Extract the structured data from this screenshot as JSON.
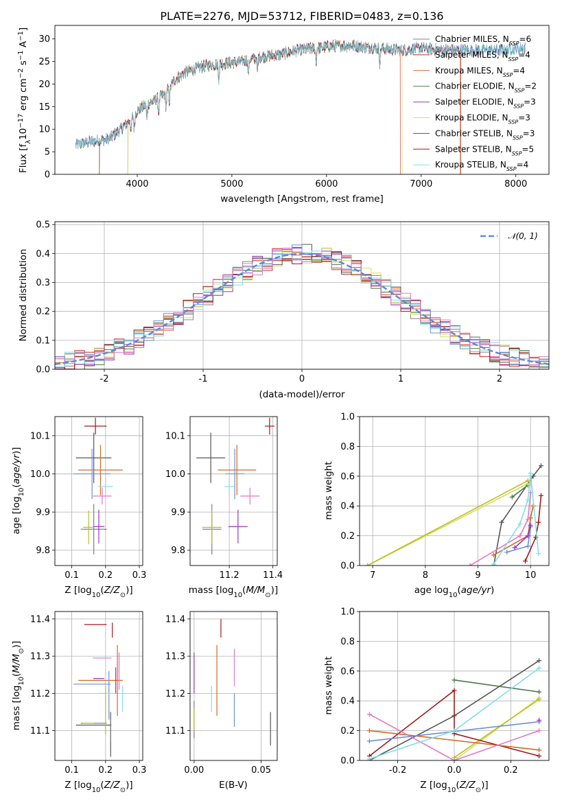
{
  "title": "PLATE=2276, MJD=53712, FIBERID=0483, z=0.136",
  "colors": [
    "#7f7f7f",
    "#d62728",
    "#d2691e",
    "#4a7a4a",
    "#9932cc",
    "#d4e157",
    "#555555",
    "#a01818",
    "#80deea",
    "#6a8fd8",
    "#e377c2",
    "#bcbd22"
  ],
  "chart_data": [
    {
      "id": "spectrum",
      "type": "line",
      "xlabel": "wavelength [Angstrom, rest frame]",
      "ylabel": "Flux [f_λ10^-17 erg cm^-2 s^-1 A^-1]",
      "xlim": [
        3130,
        8350
      ],
      "ylim": [
        0,
        33
      ],
      "grid": false,
      "xticks": [
        4000,
        5000,
        6000,
        7000,
        8000
      ],
      "yticks": [
        0,
        5,
        10,
        15,
        20,
        25,
        30
      ],
      "legend_position": "top-right",
      "series": [
        {
          "name": "Chabrier MILES, N_SSP=6",
          "color": "#7f7f7f"
        },
        {
          "name": "Salpeter MILES, N_SSP=4",
          "color": "#d62728"
        },
        {
          "name": "Kroupa MILES, N_SSP=4",
          "color": "#d2691e"
        },
        {
          "name": "Chabrier ELODIE, N_SSP=2",
          "color": "#4a7a4a"
        },
        {
          "name": "Salpeter ELODIE, N_SSP=3",
          "color": "#9932cc"
        },
        {
          "name": "Kroupa ELODIE, N_SSP=3",
          "color": "#d4e157"
        },
        {
          "name": "Chabrier STELIB, N_SSP=3",
          "color": "#555555"
        },
        {
          "name": "Salpeter STELIB, N_SSP=5",
          "color": "#a01818"
        },
        {
          "name": "Kroupa STELIB, N_SSP=4",
          "color": "#80deea"
        }
      ],
      "continuum": {
        "x": [
          3350,
          3500,
          3700,
          3800,
          3900,
          4000,
          4100,
          4200,
          4300,
          4400,
          4500,
          4700,
          4900,
          5100,
          5300,
          5500,
          5700,
          5900,
          6100,
          6300,
          6500,
          6800,
          7000,
          7200,
          7400,
          7600,
          7800,
          8100
        ],
        "y": [
          6.5,
          7.2,
          7.8,
          9.5,
          11.5,
          14,
          15.5,
          16.5,
          18,
          21,
          22.5,
          24,
          24.5,
          25,
          26,
          26.5,
          27.5,
          28,
          28.5,
          28.5,
          28,
          27.5,
          28,
          27.5,
          27.5,
          27.5,
          27.5,
          28
        ]
      },
      "absorption_lines_x": [
        3934,
        3969,
        4102,
        4227,
        4304,
        4340,
        4861,
        5175,
        5270,
        5890,
        6563
      ]
    },
    {
      "id": "residuals",
      "type": "bar",
      "xlabel": "(data-model)/error",
      "ylabel": "Normed distribution",
      "xlim": [
        -2.5,
        2.5
      ],
      "ylim": [
        0,
        0.51
      ],
      "grid": true,
      "xticks": [
        -2,
        -1,
        0,
        1,
        2
      ],
      "yticks": [
        0.0,
        0.1,
        0.2,
        0.3,
        0.4,
        0.5
      ],
      "legend_position": "top-right",
      "reference_label": "𝒩(0, 1)",
      "reference_color": "#5b8ad8",
      "bin_width": 0.1
    },
    {
      "id": "age-vs-Z",
      "type": "scatter",
      "xlabel": "Z [log10(Z/Z☉)]",
      "ylabel": "age [log10(age/yr)]",
      "xlim": [
        0.05,
        0.31
      ],
      "ylim": [
        9.76,
        10.15
      ],
      "grid": true,
      "xticks": [
        0.1,
        0.2,
        0.3
      ],
      "yticks": [
        9.8,
        9.9,
        10.0,
        10.1
      ]
    },
    {
      "id": "age-vs-mass",
      "type": "scatter",
      "xlabel": "mass [log10(M/M☉)]",
      "ylabel": "",
      "xlim": [
        11.02,
        11.42
      ],
      "ylim": [
        9.76,
        10.15
      ],
      "grid": true,
      "xticks": [
        11.2,
        11.4
      ],
      "yticks": [
        9.8,
        9.9,
        10.0,
        10.1
      ]
    },
    {
      "id": "mass-vs-Z",
      "type": "scatter",
      "xlabel": "Z [log10(Z/Z☉)]",
      "ylabel": "mass [log10(M/M☉)]",
      "xlim": [
        0.05,
        0.31
      ],
      "ylim": [
        11.02,
        11.42
      ],
      "grid": true,
      "xticks": [
        0.1,
        0.2,
        0.3
      ],
      "yticks": [
        11.1,
        11.2,
        11.3,
        11.4
      ]
    },
    {
      "id": "mass-vs-ebv",
      "type": "scatter",
      "xlabel": "E(B-V)",
      "ylabel": "",
      "xlim": [
        -0.003,
        0.062
      ],
      "ylim": [
        11.02,
        11.42
      ],
      "grid": true,
      "xticks": [
        0.0,
        0.05
      ],
      "yticks": [
        11.1,
        11.2,
        11.3,
        11.4
      ]
    },
    {
      "id": "weight-vs-age",
      "type": "line",
      "xlabel": "age log10(age/yr)",
      "ylabel": "mass weight",
      "xlim": [
        6.75,
        10.35
      ],
      "ylim": [
        0,
        1
      ],
      "grid": true,
      "xticks": [
        7,
        8,
        9,
        10
      ],
      "yticks": [
        0.0,
        0.2,
        0.4,
        0.6,
        0.8,
        1.0
      ]
    },
    {
      "id": "weight-vs-Z",
      "type": "line",
      "xlabel": "Z [log10(Z/Z☉)]",
      "ylabel": "mass weight",
      "xlim": [
        -0.335,
        0.335
      ],
      "ylim": [
        0,
        1
      ],
      "grid": true,
      "xticks": [
        -0.2,
        0.0,
        0.2
      ],
      "yticks": [
        0.0,
        0.2,
        0.4,
        0.6,
        0.8,
        1.0
      ]
    }
  ],
  "fits": [
    {
      "color": "#555555",
      "Z": 0.165,
      "Z_err": 0.095,
      "age": 10.042,
      "age_err": 0.03,
      "mass": 11.115,
      "mass_err": 0.03,
      "mass_lo": 11.03,
      "mass_hi": 11.15,
      "ebv": 0.057,
      "ebv_lo": 11.06,
      "ebv_hi": 11.15
    },
    {
      "color": "#7f7f7f",
      "Z": 0.165,
      "Z_err": 0.07,
      "age": 9.855,
      "age_err": 0.03,
      "mass": 11.12,
      "mass_err": 0.02,
      "mass_lo": 11.07,
      "mass_hi": 11.13,
      "ebv": 0.0,
      "ebv_lo": 11.08,
      "ebv_hi": 11.18
    },
    {
      "color": "#a01818",
      "Z": 0.17,
      "Z_err": 0.06,
      "age": 10.125,
      "age_err": 0.01,
      "mass": 11.385,
      "mass_err": 0.01,
      "mass_lo": 11.35,
      "mass_hi": 11.39,
      "ebv": 0.02,
      "ebv_lo": 11.35,
      "ebv_hi": 11.4
    },
    {
      "color": "#d2691e",
      "Z": 0.185,
      "Z_err": 0.12,
      "age": 10.01,
      "age_err": 0.03,
      "mass": 11.235,
      "mass_err": 0.04,
      "mass_lo": 11.14,
      "mass_hi": 11.33,
      "ebv": 0.017,
      "ebv_lo": 11.14,
      "ebv_hi": 11.33
    },
    {
      "color": "#6a8fd8",
      "Z": 0.16,
      "Z_err": 0.1,
      "age": 10.0,
      "age_err": 0.03,
      "mass": 11.225,
      "mass_err": 0.02,
      "mass_lo": 11.13,
      "mass_hi": 11.26,
      "ebv": 0.03,
      "ebv_lo": 11.11,
      "ebv_hi": 11.2
    },
    {
      "color": "#e377c2",
      "Z": 0.19,
      "Z_err": 0.05,
      "age": 9.942,
      "age_err": 0.01,
      "mass": 11.295,
      "mass_err": 0.02,
      "mass_lo": 11.21,
      "mass_hi": 11.31,
      "ebv": 0.03,
      "ebv_lo": 11.22,
      "ebv_hi": 11.32
    },
    {
      "color": "#9932cc",
      "Z": 0.18,
      "Z_err": 0.03,
      "age": 9.862,
      "age_err": 0.02,
      "mass": 11.24,
      "mass_err": 0.02,
      "mass_lo": 11.2,
      "mass_hi": 11.27,
      "ebv": 0.0,
      "ebv_lo": 11.2,
      "ebv_hi": 11.31
    },
    {
      "color": "#80deea",
      "Z": 0.2,
      "Z_err": 0.04,
      "age": 9.967,
      "age_err": 0.01,
      "mass": 11.2,
      "mass_err": 0.01,
      "mass_lo": 11.15,
      "mass_hi": 11.22,
      "ebv": 0.013,
      "ebv_lo": 11.15,
      "ebv_hi": 11.22
    },
    {
      "color": "#bcbd22",
      "Z": 0.15,
      "Z_err": 0.03,
      "age": 9.86,
      "age_err": 0.02,
      "mass": 11.12,
      "mass_err": 0.02,
      "mass_lo": 11.09,
      "mass_hi": 11.22,
      "ebv": 0.0,
      "ebv_lo": 11.1,
      "ebv_hi": 11.16
    }
  ],
  "weights": [
    {
      "color": "#555555",
      "ages": [
        9.3,
        9.45,
        10.05,
        10.2
      ],
      "wa": [
        0.0,
        0.29,
        0.6,
        0.67
      ],
      "Z": [
        -0.3,
        0.0,
        0.3
      ],
      "wz": [
        0.0,
        0.3,
        0.67
      ]
    },
    {
      "color": "#4a7a4a",
      "ages": [
        9.65,
        9.95
      ],
      "wa": [
        0.46,
        0.54
      ],
      "Z": [
        0.0,
        0.3
      ],
      "wz": [
        0.54,
        0.46
      ]
    },
    {
      "color": "#d4e157",
      "ages": [
        6.9,
        9.95
      ],
      "wa": [
        0.0,
        0.55
      ],
      "Z": [
        0.0,
        0.3
      ],
      "wz": [
        0.0,
        0.42
      ]
    },
    {
      "color": "#bcbd22",
      "ages": [
        6.9,
        9.95
      ],
      "wa": [
        0.0,
        0.57
      ],
      "Z": [
        0.0,
        0.3
      ],
      "wz": [
        0.02,
        0.41
      ]
    },
    {
      "color": "#a01818",
      "ages": [
        9.9,
        10.1,
        10.15,
        10.2
      ],
      "wa": [
        0.03,
        0.19,
        0.29,
        0.47
      ],
      "Z": [
        -0.3,
        0.0,
        0.0,
        0.3
      ],
      "wz": [
        0.03,
        0.47,
        0.18,
        0.03
      ]
    },
    {
      "color": "#d2691e",
      "ages": [
        9.3,
        9.95,
        10.0,
        10.05
      ],
      "wa": [
        0.07,
        0.2,
        0.32,
        0.4
      ],
      "Z": [
        -0.3,
        0.3
      ],
      "wz": [
        0.2,
        0.07
      ]
    },
    {
      "color": "#6a8fd8",
      "ages": [
        9.55,
        9.95,
        10.0
      ],
      "wa": [
        0.09,
        0.13,
        0.26
      ],
      "Z": [
        -0.3,
        0.3
      ],
      "wz": [
        0.13,
        0.26
      ]
    },
    {
      "color": "#e377c2",
      "ages": [
        8.85,
        9.8,
        9.95,
        10.0
      ],
      "wa": [
        0.0,
        0.2,
        0.31,
        0.49
      ],
      "Z": [
        -0.3,
        0.0,
        0.3
      ],
      "wz": [
        0.31,
        0.0,
        0.2
      ]
    },
    {
      "color": "#80deea",
      "ages": [
        9.3,
        9.8,
        9.95,
        10.0,
        10.15
      ],
      "wa": [
        0.01,
        0.28,
        0.44,
        0.62,
        0.08
      ],
      "Z": [
        -0.3,
        0.0,
        0.3
      ],
      "wz": [
        0.01,
        0.2,
        0.62
      ]
    },
    {
      "color": "#9932cc",
      "ages": [
        9.7,
        9.95,
        10.0
      ],
      "wa": [
        0.12,
        0.2,
        0.27
      ],
      "Z": [
        0.3
      ],
      "wz": [
        0.27
      ]
    }
  ]
}
